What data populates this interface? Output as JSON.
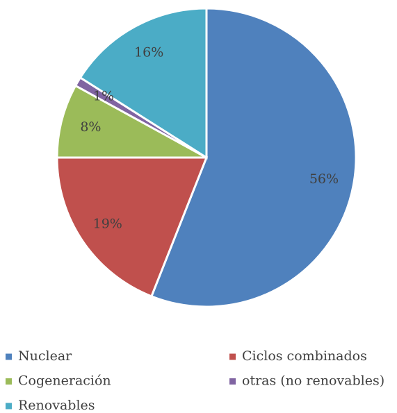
{
  "chart_data": {
    "type": "pie",
    "categories": [
      "Nuclear",
      "Ciclos combinados",
      "Cogeneración",
      "otras (no renovables)",
      "Renovables"
    ],
    "values": [
      56,
      19,
      8,
      1,
      16
    ],
    "value_labels": [
      "56%",
      "19%",
      "8%",
      "1%",
      "16%"
    ],
    "colors": [
      "#4f81bd",
      "#c0504d",
      "#9bbb59",
      "#8064a2",
      "#4bacc6"
    ],
    "legend": "bottom"
  }
}
